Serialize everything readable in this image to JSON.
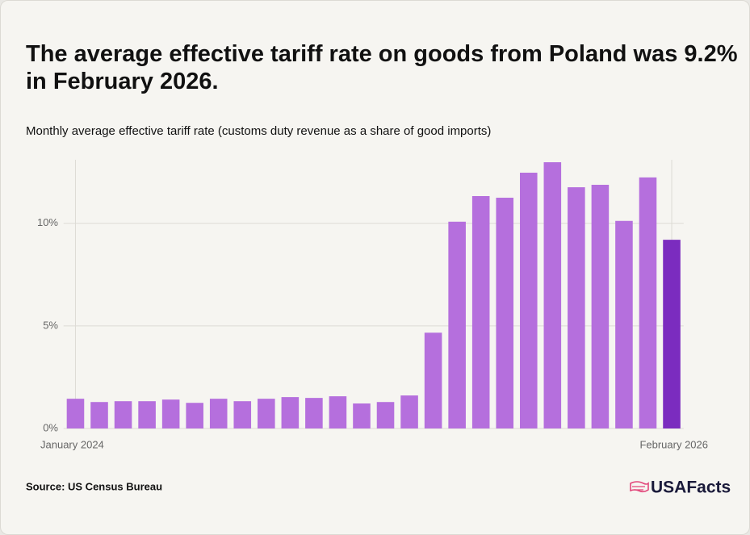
{
  "chart_data": {
    "type": "bar",
    "title": "The average effective tariff rate on goods from Poland was 9.2% in February 2026.",
    "subtitle": "Monthly average effective tariff rate (customs duty revenue as a share of good imports)",
    "source": "Source: US Census Bureau",
    "categories": [
      "January 2024",
      null,
      null,
      null,
      null,
      null,
      null,
      null,
      null,
      null,
      null,
      null,
      null,
      null,
      null,
      null,
      null,
      null,
      null,
      null,
      null,
      null,
      null,
      null,
      null,
      "February 2026"
    ],
    "values": [
      1.45,
      1.29,
      1.33,
      1.33,
      1.41,
      1.25,
      1.45,
      1.33,
      1.45,
      1.53,
      1.49,
      1.57,
      1.22,
      1.29,
      1.61,
      4.67,
      10.08,
      11.33,
      11.25,
      12.47,
      12.98,
      11.76,
      11.88,
      10.12,
      12.24,
      9.2
    ],
    "colors": [
      "#b56fdd",
      "#b56fdd",
      "#b56fdd",
      "#b56fdd",
      "#b56fdd",
      "#b56fdd",
      "#b56fdd",
      "#b56fdd",
      "#b56fdd",
      "#b56fdd",
      "#b56fdd",
      "#b56fdd",
      "#b56fdd",
      "#b56fdd",
      "#b56fdd",
      "#b56fdd",
      "#b56fdd",
      "#b56fdd",
      "#b56fdd",
      "#b56fdd",
      "#b56fdd",
      "#b56fdd",
      "#b56fdd",
      "#b56fdd",
      "#b56fdd",
      "#7b2cbf"
    ],
    "ylim": [
      0,
      13.1
    ],
    "yticks": [
      {
        "value": 0,
        "label": "0%"
      },
      {
        "value": 5,
        "label": "5%"
      },
      {
        "value": 10,
        "label": "10%"
      }
    ],
    "grid": true
  },
  "brand": "USAFacts"
}
